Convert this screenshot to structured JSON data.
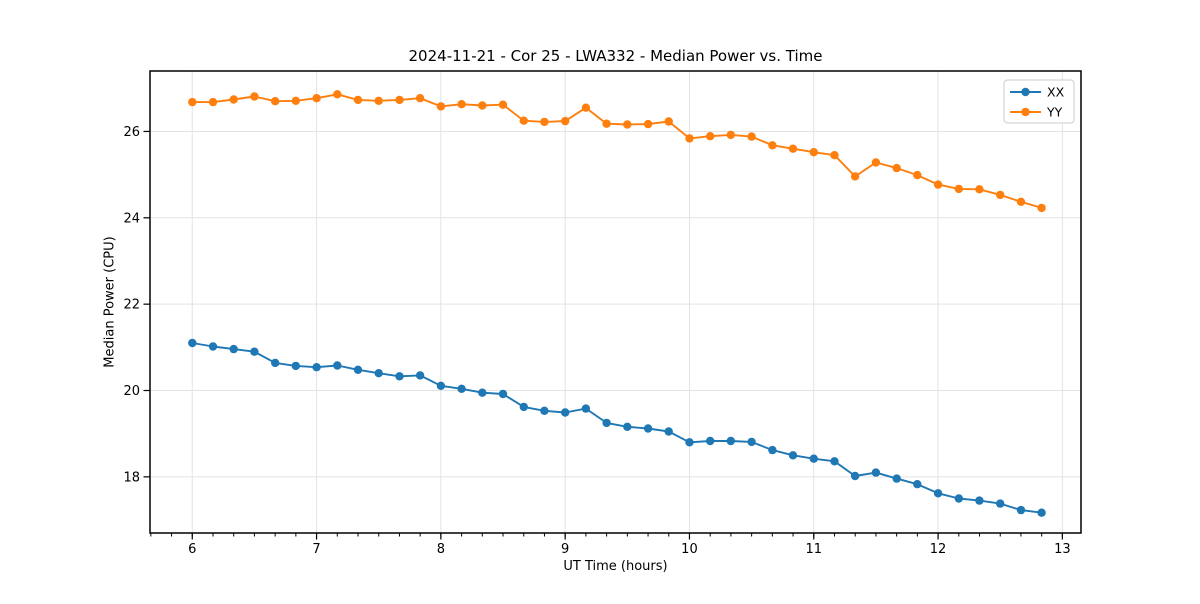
{
  "page": {
    "background": "#ffffff"
  },
  "chart_data": {
    "type": "line",
    "title": "2024-11-21 - Cor 25 - LWA332 - Median Power vs. Time",
    "xlabel": "UT Time (hours)",
    "ylabel": "Median Power (CPU)",
    "xlim": [
      5.66,
      13.15
    ],
    "ylim": [
      16.7,
      27.4
    ],
    "xticks": [
      6,
      7,
      8,
      9,
      10,
      11,
      12,
      13
    ],
    "yticks": [
      18,
      20,
      22,
      24,
      26
    ],
    "x_minor_step": 0.16667,
    "grid": true,
    "grid_color": "#e3e3e3",
    "legend_position": "upper right",
    "marker": "circle",
    "x": [
      6,
      6.167,
      6.333,
      6.5,
      6.667,
      6.833,
      7,
      7.167,
      7.333,
      7.5,
      7.667,
      7.833,
      8,
      8.167,
      8.333,
      8.5,
      8.667,
      8.833,
      9,
      9.167,
      9.333,
      9.5,
      9.667,
      9.833,
      10,
      10.167,
      10.333,
      10.5,
      10.667,
      10.833,
      11,
      11.167,
      11.333,
      11.5,
      11.667,
      11.833,
      12,
      12.167,
      12.333,
      12.5,
      12.667,
      12.833
    ],
    "series": [
      {
        "name": "XX",
        "color": "#1f77b4",
        "values": [
          21.1,
          21.02,
          20.96,
          20.9,
          20.64,
          20.57,
          20.54,
          20.58,
          20.48,
          20.4,
          20.33,
          20.35,
          20.11,
          20.04,
          19.95,
          19.92,
          19.62,
          19.53,
          19.49,
          19.58,
          19.25,
          19.16,
          19.12,
          19.05,
          18.8,
          18.83,
          18.83,
          18.81,
          18.62,
          18.5,
          18.42,
          18.36,
          18.02,
          18.1,
          17.96,
          17.83,
          17.62,
          17.5,
          17.45,
          17.38,
          17.23,
          17.17
        ]
      },
      {
        "name": "YY",
        "color": "#ff7f0e",
        "values": [
          26.68,
          26.68,
          26.74,
          26.81,
          26.7,
          26.71,
          26.77,
          26.86,
          26.73,
          26.71,
          26.73,
          26.77,
          26.58,
          26.63,
          26.6,
          26.62,
          26.25,
          26.22,
          26.24,
          26.55,
          26.18,
          26.16,
          26.17,
          26.23,
          25.84,
          25.89,
          25.92,
          25.88,
          25.68,
          25.6,
          25.52,
          25.45,
          24.96,
          25.28,
          25.15,
          24.99,
          24.77,
          24.67,
          24.66,
          24.53,
          24.37,
          24.23
        ]
      }
    ]
  }
}
